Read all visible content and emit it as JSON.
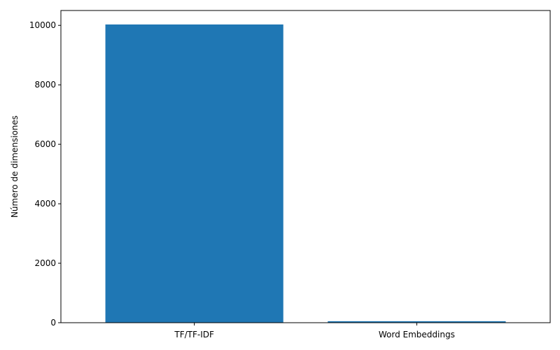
{
  "chart_data": {
    "type": "bar",
    "categories": [
      "TF/TF-IDF",
      "Word Embeddings"
    ],
    "values": [
      10030,
      50
    ],
    "ylabel": "Número de dimensiones",
    "xlabel": "",
    "ylim": [
      0,
      10500
    ],
    "yticks": [
      0,
      2000,
      4000,
      6000,
      8000,
      10000
    ],
    "bar_color": "#1f77b4",
    "grid": false,
    "legend": false
  }
}
